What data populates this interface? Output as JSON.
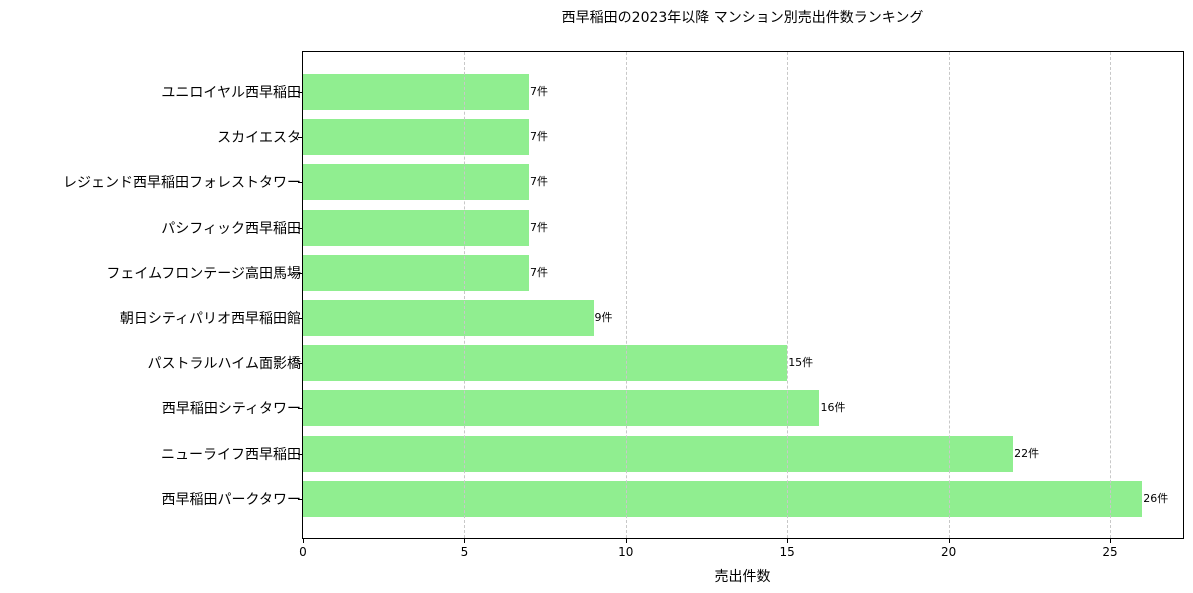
{
  "chart_data": {
    "type": "bar",
    "orientation": "horizontal",
    "title": "西早稲田の2023年以降 マンション別売出件数ランキング",
    "xlabel": "売出件数",
    "ylabel": "",
    "xlim": [
      0,
      27.3
    ],
    "xticks": [
      0,
      5,
      10,
      15,
      20,
      25
    ],
    "grid": {
      "x": true,
      "y": false,
      "style": "dashed"
    },
    "bar_color": "#90ee90",
    "value_suffix": "件",
    "categories": [
      "ユニロイヤル西早稲田",
      "スカイエスタ",
      "レジェンド西早稲田フォレストタワー",
      "パシフィック西早稲田",
      "フェイムフロンテージ高田馬場",
      "朝日シティパリオ西早稲田館",
      "パストラルハイム面影橋",
      "西早稲田シティタワー",
      "ニューライフ西早稲田",
      "西早稲田パークタワー"
    ],
    "values": [
      7,
      7,
      7,
      7,
      7,
      9,
      15,
      16,
      22,
      26
    ],
    "value_labels": [
      "7件",
      "7件",
      "7件",
      "7件",
      "7件",
      "9件",
      "15件",
      "16件",
      "22件",
      "26件"
    ]
  }
}
